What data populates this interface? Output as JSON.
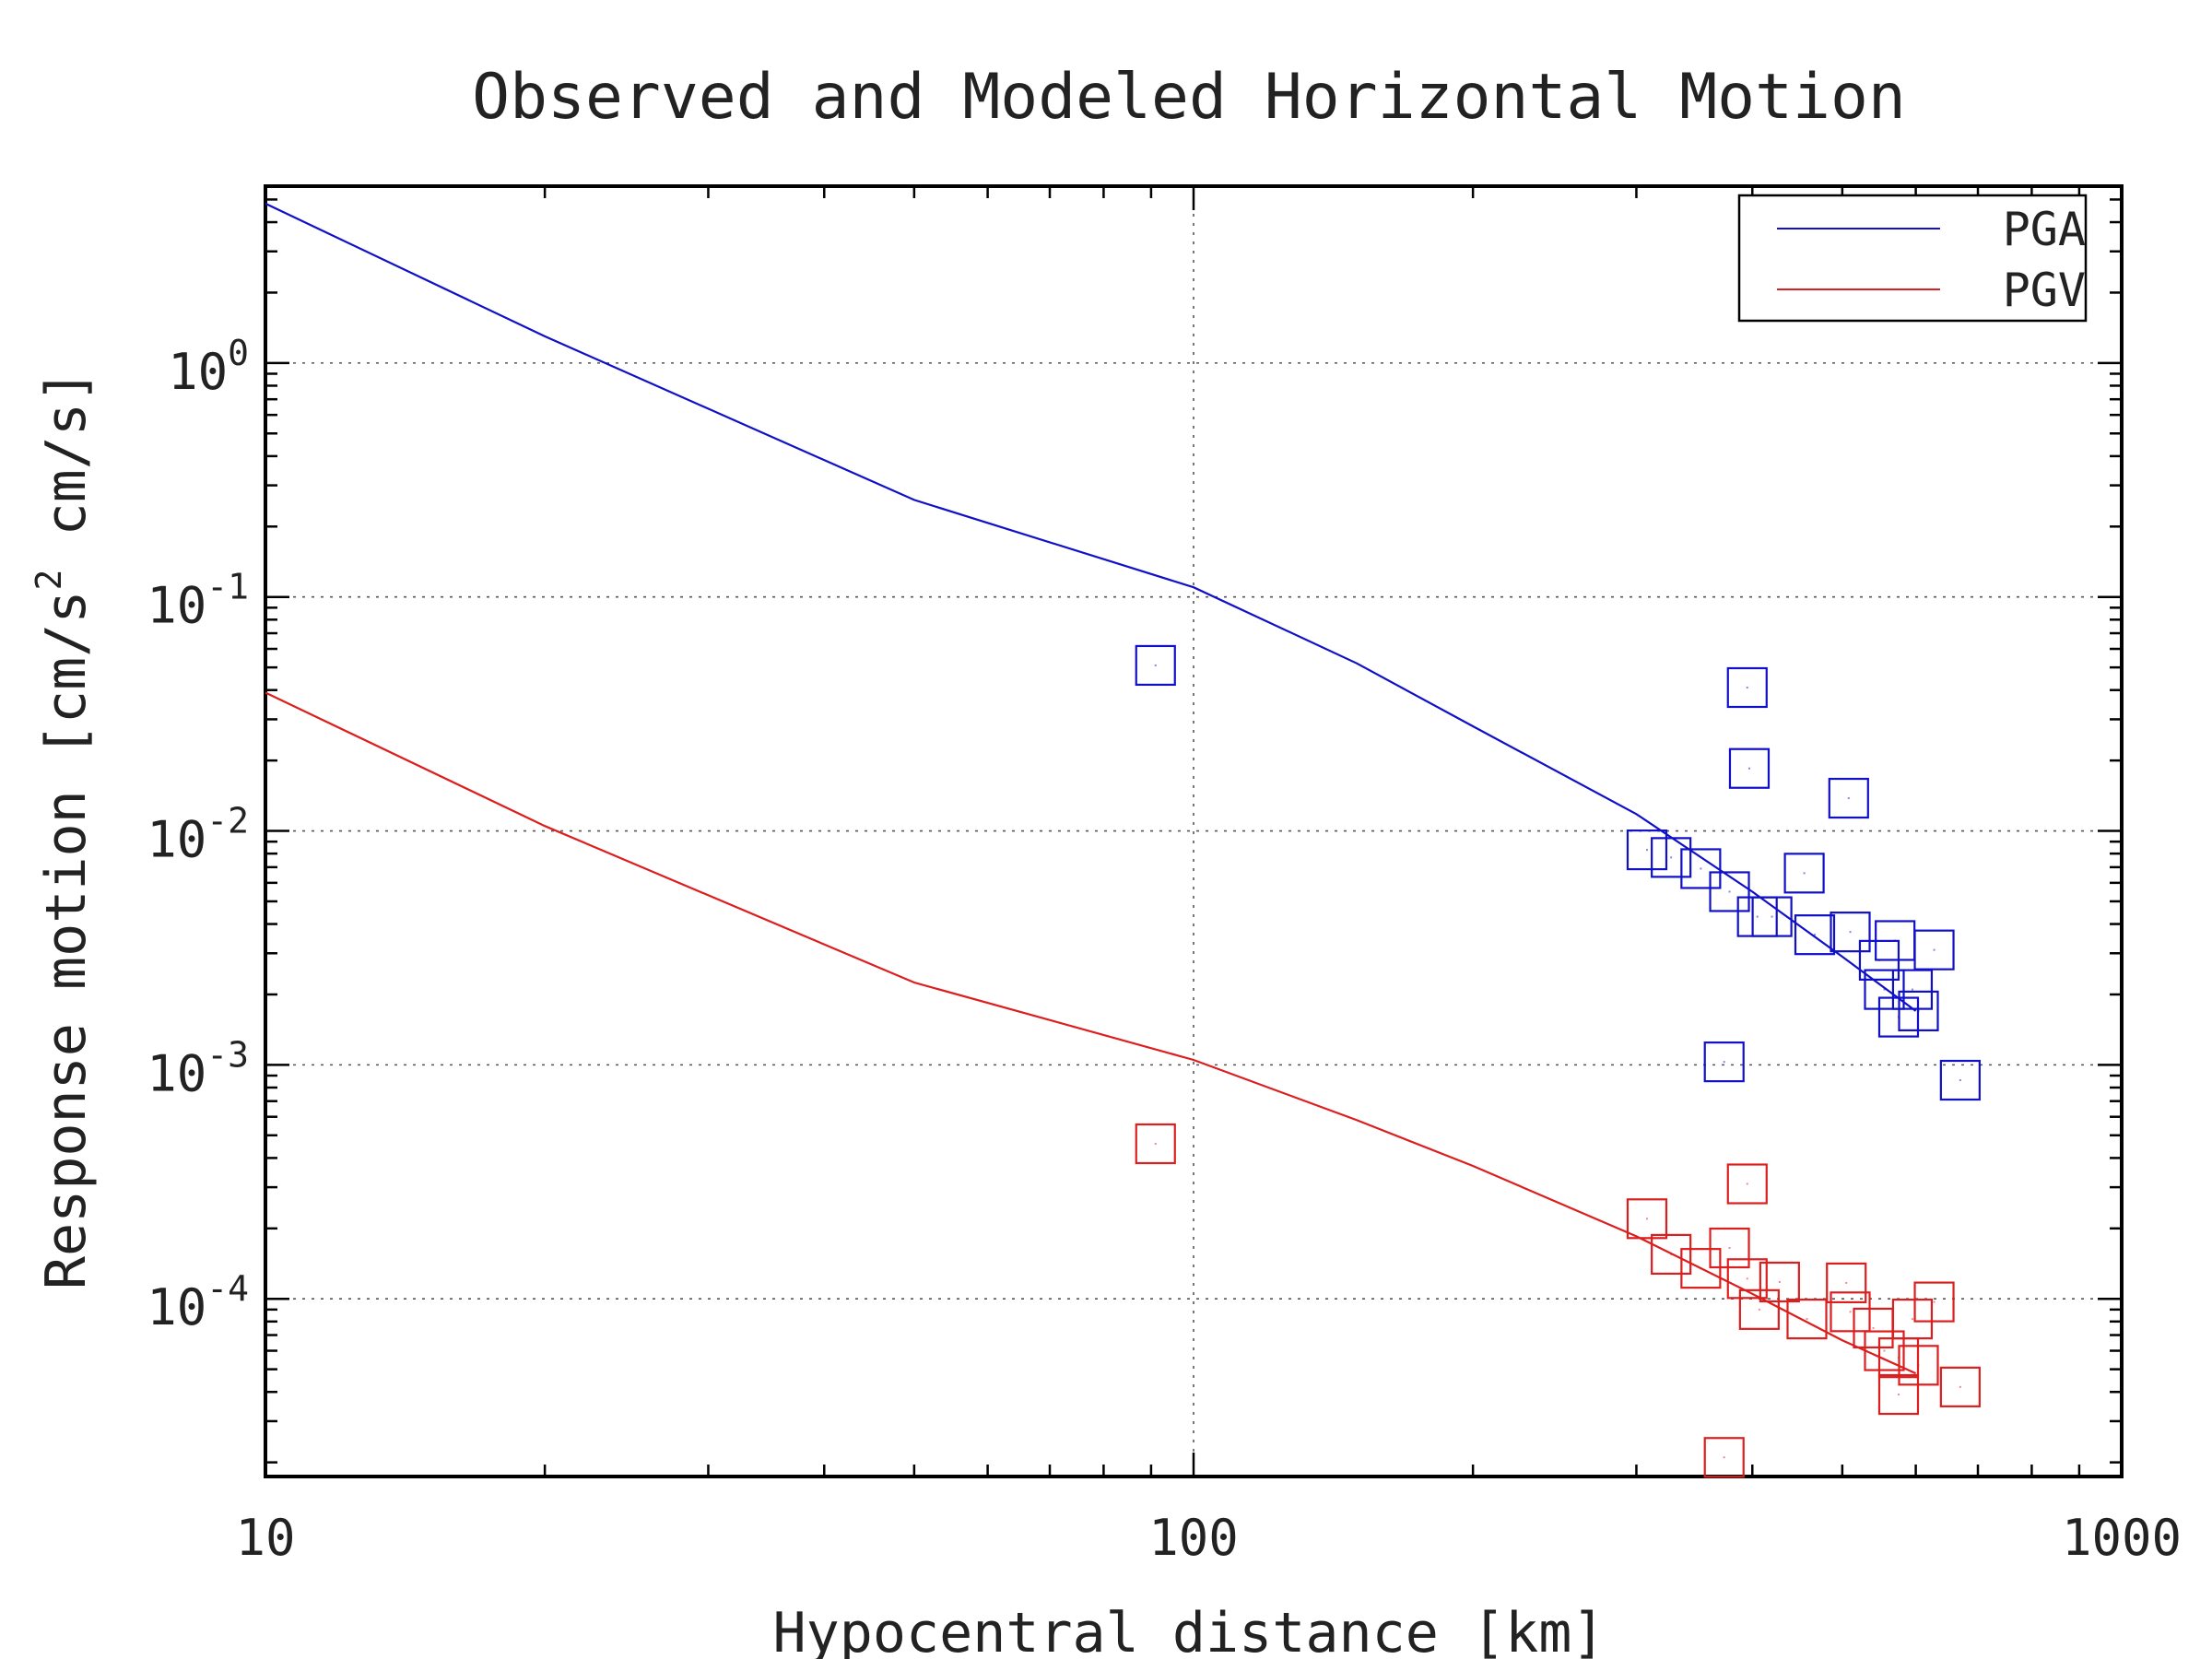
{
  "chart_data": {
    "type": "scatter",
    "title": "Observed and Modeled Horizontal Motion",
    "xlabel": "Hypocentral distance [km]",
    "ylabel": {
      "parts": [
        "Response motion  [cm/s",
        "2",
        "  cm/s]"
      ]
    },
    "xscale": "log",
    "yscale": "log",
    "xlim": [
      10,
      1000
    ],
    "ylim": [
      1.74e-05,
      5.7
    ],
    "grid": true,
    "legend_position": "top-right",
    "x_ticks": [
      {
        "value": 10,
        "label": "10"
      },
      {
        "value": 100,
        "label": "100"
      },
      {
        "value": 1000,
        "label": "1000"
      }
    ],
    "y_ticks": [
      {
        "value": 1,
        "base": "10",
        "exp": "0"
      },
      {
        "value": 0.1,
        "base": "10",
        "exp": "-1"
      },
      {
        "value": 0.01,
        "base": "10",
        "exp": "-2"
      },
      {
        "value": 0.001,
        "base": "10",
        "exp": "-3"
      },
      {
        "value": 0.0001,
        "base": "10",
        "exp": "-4"
      }
    ],
    "lines": [
      {
        "name": "PGA",
        "color": "#1010c8",
        "x": [
          10,
          20,
          50,
          100,
          150,
          200,
          300,
          400,
          500,
          600
        ],
        "y": [
          4.8,
          1.3,
          0.26,
          0.11,
          0.052,
          0.028,
          0.0118,
          0.0055,
          0.0029,
          0.0017
        ]
      },
      {
        "name": "PGV",
        "color": "#dc1e1e",
        "x": [
          10,
          20,
          50,
          100,
          150,
          200,
          300,
          400,
          500,
          600
        ],
        "y": [
          0.039,
          0.0105,
          0.00225,
          0.00105,
          0.00058,
          0.00037,
          0.000185,
          0.000105,
          6.65e-05,
          4.8e-05
        ]
      }
    ],
    "observed": [
      {
        "name": "PGA",
        "color": "#1010c8",
        "points": [
          [
            91,
            0.051
          ],
          [
            395,
            0.041
          ],
          [
            397,
            0.0185
          ],
          [
            508,
            0.0138
          ],
          [
            455,
            0.0066
          ],
          [
            308,
            0.0083
          ],
          [
            327,
            0.0077
          ],
          [
            352,
            0.0069
          ],
          [
            378,
            0.0055
          ],
          [
            405,
            0.0043
          ],
          [
            420,
            0.0043
          ],
          [
            467,
            0.0036
          ],
          [
            510,
            0.0037
          ],
          [
            548,
            0.0028
          ],
          [
            570,
            0.0034
          ],
          [
            555,
            0.0021
          ],
          [
            595,
            0.0021
          ],
          [
            575,
            0.0016
          ],
          [
            604,
            0.0017
          ],
          [
            628,
            0.0031
          ],
          [
            670,
            0.00086
          ],
          [
            373,
            0.00103
          ]
        ]
      },
      {
        "name": "PGV",
        "color": "#dc1e1e",
        "points": [
          [
            91,
            0.00046
          ],
          [
            395,
            0.00031
          ],
          [
            308,
            0.00022
          ],
          [
            327,
            0.000155
          ],
          [
            352,
            0.000135
          ],
          [
            378,
            0.000165
          ],
          [
            395,
            0.000122
          ],
          [
            428,
            0.000118
          ],
          [
            407,
            9e-05
          ],
          [
            458,
            8.2e-05
          ],
          [
            505,
            0.000117
          ],
          [
            510,
            8.8e-05
          ],
          [
            540,
            7.5e-05
          ],
          [
            555,
            6e-05
          ],
          [
            575,
            5.6e-05
          ],
          [
            595,
            8.2e-05
          ],
          [
            604,
            5.2e-05
          ],
          [
            628,
            9.7e-05
          ],
          [
            575,
            3.9e-05
          ],
          [
            670,
            4.2e-05
          ],
          [
            373,
            2.1e-05
          ]
        ]
      }
    ]
  }
}
